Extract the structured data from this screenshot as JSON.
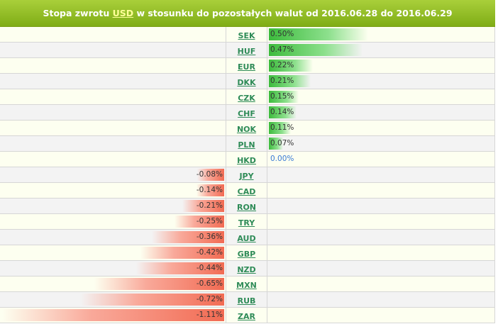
{
  "header": {
    "prefix": "Stopa zwrotu",
    "base_currency": "USD",
    "suffix": "w stosunku do pozostałych walut od 2016.06.28 do 2016.06.29"
  },
  "chart_data": {
    "type": "bar",
    "orientation": "horizontal-diverging",
    "unit": "%",
    "categories": [
      "SEK",
      "HUF",
      "EUR",
      "DKK",
      "CZK",
      "CHF",
      "NOK",
      "PLN",
      "HKD",
      "JPY",
      "CAD",
      "RON",
      "TRY",
      "AUD",
      "GBP",
      "NZD",
      "MXN",
      "RUB",
      "ZAR"
    ],
    "values": [
      0.5,
      0.47,
      0.22,
      0.21,
      0.15,
      0.14,
      0.11,
      0.07,
      0.0,
      -0.08,
      -0.14,
      -0.21,
      -0.25,
      -0.36,
      -0.42,
      -0.44,
      -0.65,
      -0.72,
      -1.11
    ],
    "labels": [
      "0.50%",
      "0.47%",
      "0.22%",
      "0.21%",
      "0.15%",
      "0.14%",
      "0.11%",
      "0.07%",
      "0.00%",
      "-0.08%",
      "-0.14%",
      "-0.21%",
      "-0.25%",
      "-0.36%",
      "-0.42%",
      "-0.44%",
      "-0.65%",
      "-0.72%",
      "-1.11%"
    ],
    "colors": {
      "positive": "#3dbb3d",
      "negative": "#f26b53",
      "zero": "#3a7bd5"
    }
  }
}
